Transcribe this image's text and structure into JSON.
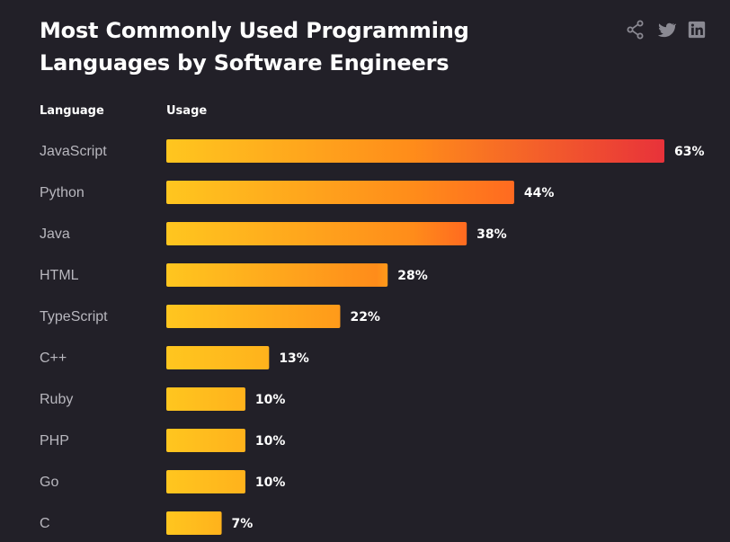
{
  "title": "Most Commonly Used Programming Languages by Software Engineers",
  "share": {
    "icons": [
      "share-icon",
      "twitter-icon",
      "linkedin-icon"
    ],
    "icon_color": "#8a8992"
  },
  "columns": {
    "language": "Language",
    "usage": "Usage"
  },
  "colors": {
    "background": "#222028",
    "bar_gradient_start": "#ffc61f",
    "bar_gradient_mid": "#ff8c1a",
    "bar_gradient_end": "#e8323a",
    "category_label": "#b8b7be",
    "value_label": "#ffffff"
  },
  "chart_data": {
    "type": "bar",
    "orientation": "horizontal",
    "categories": [
      "JavaScript",
      "Python",
      "Java",
      "HTML",
      "TypeScript",
      "C++",
      "Ruby",
      "PHP",
      "Go",
      "C"
    ],
    "values": [
      63,
      44,
      38,
      28,
      22,
      13,
      10,
      10,
      10,
      7
    ],
    "value_labels": [
      "63%",
      "44%",
      "38%",
      "28%",
      "22%",
      "13%",
      "10%",
      "10%",
      "10%",
      "7%"
    ],
    "unit": "%",
    "xlim": [
      0,
      63
    ],
    "grid": false,
    "legend": "none"
  }
}
